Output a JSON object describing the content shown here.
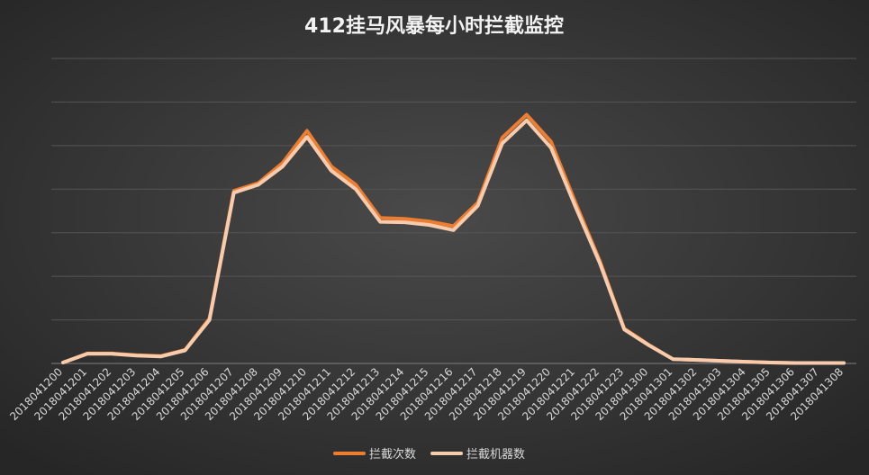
{
  "chart_data": {
    "type": "line",
    "title": "412挂马风暴每小时拦截监控",
    "categories": [
      "2018041200",
      "2018041201",
      "2018041202",
      "2018041203",
      "2018041204",
      "2018041205",
      "2018041206",
      "2018041207",
      "2018041208",
      "2018041209",
      "2018041210",
      "2018041211",
      "2018041212",
      "2018041213",
      "2018041214",
      "2018041215",
      "2018041216",
      "2018041217",
      "2018041218",
      "2018041219",
      "2018041220",
      "2018041221",
      "2018041222",
      "2018041223",
      "2018041300",
      "2018041301",
      "2018041302",
      "2018041303",
      "2018041304",
      "2018041305",
      "2018041306",
      "2018041307",
      "2018041308"
    ],
    "series": [
      {
        "name": "拦截次数",
        "color": "#ed7d31",
        "values": [
          0.02,
          0.23,
          0.23,
          0.19,
          0.17,
          0.31,
          1.03,
          3.96,
          4.14,
          4.6,
          5.34,
          4.52,
          4.1,
          3.34,
          3.32,
          3.26,
          3.15,
          3.69,
          5.18,
          5.71,
          5.09,
          3.69,
          2.35,
          0.8,
          0.43,
          0.1,
          0.08,
          0.06,
          0.04,
          0.02,
          0.01,
          0.01,
          0.01
        ]
      },
      {
        "name": "拦截机器数",
        "color": "#f8cbad",
        "values": [
          0.02,
          0.22,
          0.22,
          0.18,
          0.16,
          0.3,
          1.0,
          3.92,
          4.1,
          4.52,
          5.2,
          4.42,
          4.0,
          3.25,
          3.24,
          3.18,
          3.06,
          3.62,
          5.05,
          5.58,
          4.95,
          3.6,
          2.3,
          0.78,
          0.42,
          0.1,
          0.08,
          0.06,
          0.04,
          0.02,
          0.01,
          0.01,
          0.01
        ]
      }
    ],
    "ylim": [
      0,
      7
    ],
    "yticks": [
      0,
      1,
      2,
      3,
      4,
      5,
      6,
      7
    ],
    "grid": true,
    "legend": "bottom"
  }
}
